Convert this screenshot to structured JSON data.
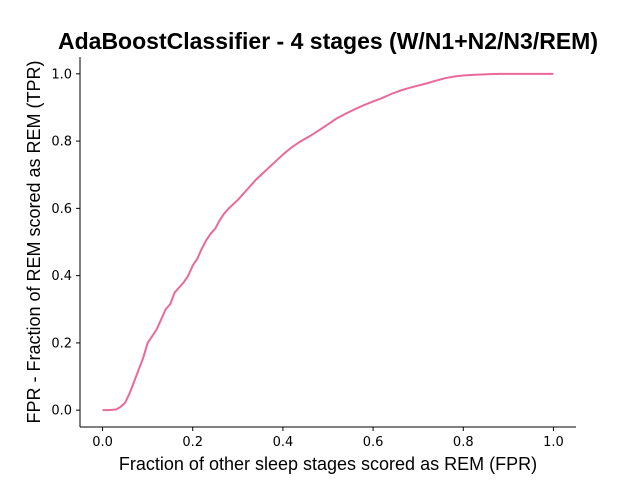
{
  "chart_data": {
    "type": "line",
    "title": "AdaBoostClassifier - 4 stages (W/N1+N2/N3/REM)",
    "xlabel": "Fraction of other sleep stages scored as REM (FPR)",
    "ylabel": "FPR - Fraction of REM scored as REM (TPR)",
    "xlim": [
      -0.05,
      1.05
    ],
    "ylim": [
      -0.05,
      1.05
    ],
    "xticks": [
      0.0,
      0.2,
      0.4,
      0.6,
      0.8,
      1.0
    ],
    "xtick_labels": [
      "0.0",
      "0.2",
      "0.4",
      "0.6",
      "0.8",
      "1.0"
    ],
    "yticks": [
      0.0,
      0.2,
      0.4,
      0.6,
      0.8,
      1.0
    ],
    "ytick_labels": [
      "0.0",
      "0.2",
      "0.4",
      "0.6",
      "0.8",
      "1.0"
    ],
    "grid": false,
    "series": [
      {
        "name": "ROC",
        "color": "#e8699a",
        "x": [
          0.0,
          0.01,
          0.02,
          0.03,
          0.04,
          0.05,
          0.06,
          0.07,
          0.08,
          0.09,
          0.1,
          0.11,
          0.12,
          0.13,
          0.14,
          0.15,
          0.16,
          0.17,
          0.18,
          0.19,
          0.2,
          0.21,
          0.22,
          0.23,
          0.24,
          0.25,
          0.26,
          0.27,
          0.28,
          0.3,
          0.32,
          0.34,
          0.36,
          0.38,
          0.4,
          0.42,
          0.44,
          0.46,
          0.48,
          0.5,
          0.52,
          0.54,
          0.56,
          0.58,
          0.6,
          0.62,
          0.64,
          0.66,
          0.68,
          0.7,
          0.72,
          0.74,
          0.76,
          0.78,
          0.8,
          0.82,
          0.84,
          0.86,
          0.88,
          0.9,
          0.92,
          0.94,
          0.96,
          0.98,
          1.0
        ],
        "y": [
          0.0,
          0.0,
          0.001,
          0.002,
          0.01,
          0.022,
          0.05,
          0.085,
          0.12,
          0.155,
          0.2,
          0.22,
          0.24,
          0.27,
          0.3,
          0.315,
          0.35,
          0.365,
          0.38,
          0.4,
          0.43,
          0.45,
          0.48,
          0.505,
          0.525,
          0.54,
          0.565,
          0.585,
          0.6,
          0.625,
          0.655,
          0.685,
          0.71,
          0.735,
          0.76,
          0.782,
          0.8,
          0.815,
          0.832,
          0.85,
          0.868,
          0.882,
          0.895,
          0.907,
          0.918,
          0.928,
          0.94,
          0.95,
          0.958,
          0.965,
          0.972,
          0.98,
          0.987,
          0.992,
          0.995,
          0.997,
          0.998,
          0.999,
          1.0,
          1.0,
          1.0,
          1.0,
          1.0,
          1.0,
          1.0
        ]
      }
    ]
  }
}
